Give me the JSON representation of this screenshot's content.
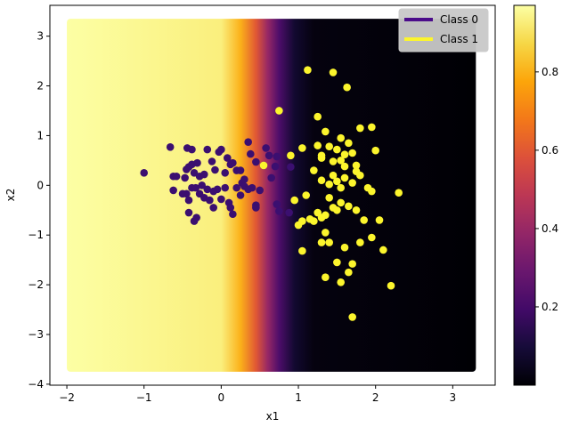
{
  "chart_data": {
    "type": "scatter",
    "xlabel": "x1",
    "ylabel": "x2",
    "xlim": [
      -2.22,
      3.55
    ],
    "ylim": [
      -4.02,
      3.62
    ],
    "xticks": [
      -2,
      -1,
      0,
      1,
      2,
      3
    ],
    "yticks": [
      -4,
      -3,
      -2,
      -1,
      0,
      1,
      2,
      3
    ],
    "x_tick_labels": [
      "−2",
      "−1",
      "0",
      "1",
      "2",
      "3"
    ],
    "y_tick_labels": [
      "−4",
      "−3",
      "−2",
      "−1",
      "0",
      "1",
      "2",
      "3"
    ],
    "legend_position": "top-right",
    "background": {
      "type": "heatmap",
      "x_range": [
        -2.0,
        3.3
      ],
      "y_range": [
        -3.75,
        3.35
      ],
      "colormap": "inferno",
      "description_values": "probability of Class 1, decreasing left to right",
      "profile": [
        [
          -2.0,
          0.97
        ],
        [
          0.0,
          0.93
        ],
        [
          0.25,
          0.8
        ],
        [
          0.45,
          0.6
        ],
        [
          0.6,
          0.4
        ],
        [
          0.75,
          0.22
        ],
        [
          0.95,
          0.08
        ],
        [
          1.2,
          0.02
        ],
        [
          3.3,
          0.0
        ]
      ]
    },
    "colorbar": {
      "range": [
        0.0,
        0.97
      ],
      "ticks": [
        0.2,
        0.4,
        0.6,
        0.8
      ],
      "tick_labels": [
        "0.2",
        "0.4",
        "0.6",
        "0.8"
      ]
    },
    "series": [
      {
        "name": "Class 0",
        "color": "#3b0f70",
        "legend_color": "#4b0c8a",
        "points": [
          [
            -1.0,
            0.25
          ],
          [
            -0.66,
            0.77
          ],
          [
            -0.62,
            0.18
          ],
          [
            -0.58,
            0.18
          ],
          [
            -0.47,
            0.15
          ],
          [
            -0.45,
            0.32
          ],
          [
            -0.44,
            0.75
          ],
          [
            -0.38,
            0.72
          ],
          [
            -0.42,
            0.37
          ],
          [
            -0.38,
            0.42
          ],
          [
            -0.31,
            0.45
          ],
          [
            -0.35,
            0.25
          ],
          [
            -0.28,
            0.18
          ],
          [
            -0.22,
            0.22
          ],
          [
            -0.18,
            0.72
          ],
          [
            -0.12,
            0.48
          ],
          [
            -0.08,
            0.31
          ],
          [
            -0.03,
            0.67
          ],
          [
            0.0,
            0.72
          ],
          [
            0.05,
            0.25
          ],
          [
            0.08,
            0.55
          ],
          [
            0.12,
            0.42
          ],
          [
            0.15,
            0.45
          ],
          [
            0.2,
            0.3
          ],
          [
            0.25,
            0.3
          ],
          [
            0.27,
            0.05
          ],
          [
            0.3,
            0.12
          ],
          [
            0.35,
            0.87
          ],
          [
            0.38,
            0.63
          ],
          [
            0.45,
            0.47
          ],
          [
            0.55,
            0.4
          ],
          [
            0.58,
            0.75
          ],
          [
            0.62,
            0.6
          ],
          [
            0.65,
            0.15
          ],
          [
            0.7,
            0.38
          ],
          [
            0.72,
            0.58
          ],
          [
            0.9,
            0.37
          ],
          [
            -0.62,
            -0.1
          ],
          [
            -0.5,
            -0.17
          ],
          [
            -0.45,
            -0.17
          ],
          [
            -0.42,
            -0.3
          ],
          [
            -0.38,
            -0.05
          ],
          [
            -0.33,
            -0.05
          ],
          [
            -0.28,
            -0.17
          ],
          [
            -0.25,
            0.0
          ],
          [
            -0.22,
            -0.25
          ],
          [
            -0.18,
            -0.08
          ],
          [
            -0.15,
            -0.3
          ],
          [
            -0.1,
            -0.45
          ],
          [
            -0.05,
            -0.08
          ],
          [
            0.0,
            -0.28
          ],
          [
            0.05,
            -0.05
          ],
          [
            0.1,
            -0.35
          ],
          [
            0.12,
            -0.45
          ],
          [
            0.15,
            -0.58
          ],
          [
            0.2,
            -0.05
          ],
          [
            0.25,
            -0.2
          ],
          [
            0.3,
            -0.02
          ],
          [
            0.35,
            -0.08
          ],
          [
            0.4,
            -0.05
          ],
          [
            0.45,
            -0.4
          ],
          [
            0.5,
            -0.1
          ],
          [
            0.72,
            -0.38
          ],
          [
            0.75,
            -0.52
          ],
          [
            0.88,
            -0.55
          ],
          [
            -0.42,
            -0.55
          ],
          [
            -0.35,
            -0.72
          ],
          [
            -0.32,
            -0.65
          ],
          [
            -0.1,
            -0.12
          ],
          [
            0.45,
            -0.45
          ]
        ]
      },
      {
        "name": "Class 1",
        "color": "#fcf52d",
        "legend_color": "#fcf52d",
        "points": [
          [
            0.55,
            0.4
          ],
          [
            0.75,
            1.5
          ],
          [
            0.9,
            0.6
          ],
          [
            1.12,
            2.32
          ],
          [
            1.45,
            2.27
          ],
          [
            1.63,
            1.97
          ],
          [
            1.25,
            1.38
          ],
          [
            1.35,
            1.08
          ],
          [
            1.55,
            0.95
          ],
          [
            1.65,
            0.85
          ],
          [
            1.8,
            1.15
          ],
          [
            1.95,
            1.17
          ],
          [
            1.25,
            0.8
          ],
          [
            1.4,
            0.78
          ],
          [
            1.5,
            0.72
          ],
          [
            1.6,
            0.62
          ],
          [
            1.7,
            0.65
          ],
          [
            2.0,
            0.7
          ],
          [
            1.05,
            0.75
          ],
          [
            1.2,
            0.3
          ],
          [
            1.3,
            0.55
          ],
          [
            1.45,
            0.48
          ],
          [
            1.55,
            0.5
          ],
          [
            1.6,
            0.38
          ],
          [
            1.75,
            0.4
          ],
          [
            1.8,
            0.2
          ],
          [
            1.3,
            0.1
          ],
          [
            1.4,
            0.02
          ],
          [
            1.5,
            0.08
          ],
          [
            1.6,
            0.15
          ],
          [
            1.7,
            0.05
          ],
          [
            1.9,
            -0.05
          ],
          [
            1.95,
            -0.12
          ],
          [
            2.3,
            -0.15
          ],
          [
            0.95,
            -0.3
          ],
          [
            1.1,
            -0.2
          ],
          [
            1.25,
            -0.55
          ],
          [
            1.35,
            -0.6
          ],
          [
            1.45,
            -0.45
          ],
          [
            1.55,
            -0.35
          ],
          [
            1.65,
            -0.42
          ],
          [
            1.75,
            -0.5
          ],
          [
            1.85,
            -0.7
          ],
          [
            2.05,
            -0.7
          ],
          [
            1.0,
            -0.8
          ],
          [
            1.05,
            -0.72
          ],
          [
            1.15,
            -0.68
          ],
          [
            1.2,
            -0.72
          ],
          [
            1.3,
            -0.65
          ],
          [
            1.35,
            -0.95
          ],
          [
            1.4,
            -1.15
          ],
          [
            1.3,
            -1.15
          ],
          [
            1.6,
            -1.25
          ],
          [
            1.8,
            -1.15
          ],
          [
            1.95,
            -1.05
          ],
          [
            2.1,
            -1.3
          ],
          [
            1.05,
            -1.32
          ],
          [
            1.5,
            -1.55
          ],
          [
            1.7,
            -1.58
          ],
          [
            1.65,
            -1.75
          ],
          [
            1.35,
            -1.85
          ],
          [
            1.55,
            -1.95
          ],
          [
            2.2,
            -2.02
          ],
          [
            1.7,
            -2.65
          ],
          [
            1.3,
            0.6
          ],
          [
            1.45,
            0.2
          ],
          [
            1.55,
            -0.05
          ],
          [
            1.5,
            -0.5
          ],
          [
            1.4,
            -0.25
          ],
          [
            1.75,
            0.28
          ]
        ]
      }
    ]
  }
}
